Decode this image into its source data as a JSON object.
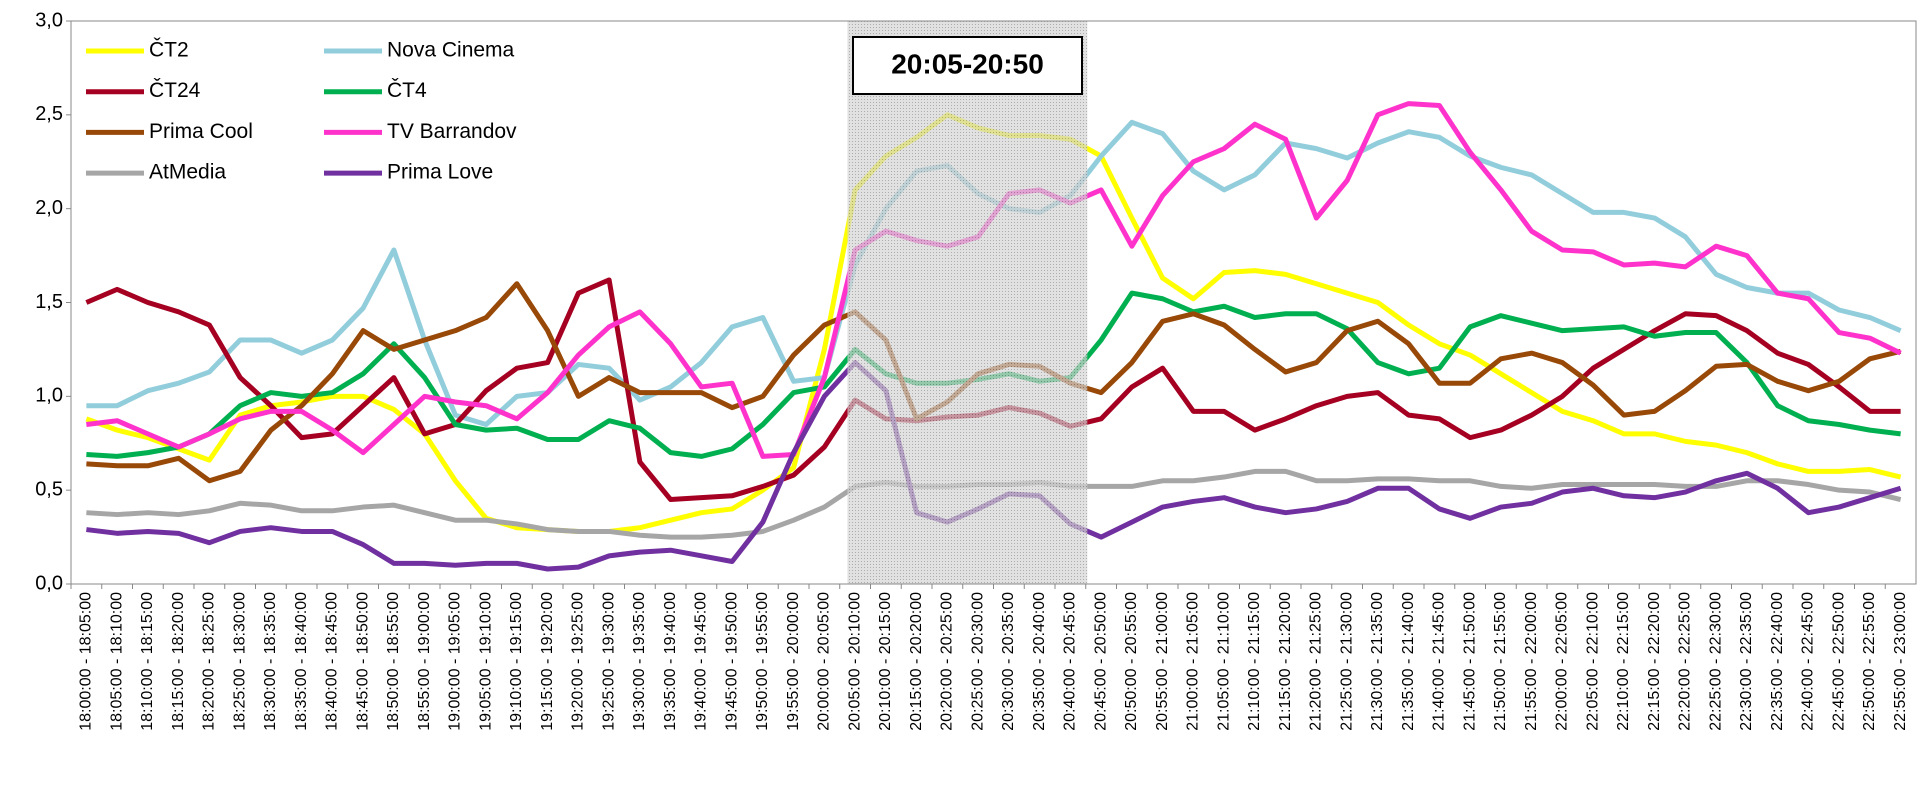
{
  "chart_data": {
    "type": "line",
    "categories": [
      "18:00:00 - 18:05:00",
      "18:05:00 - 18:10:00",
      "18:10:00 - 18:15:00",
      "18:15:00 - 18:20:00",
      "18:20:00 - 18:25:00",
      "18:25:00 - 18:30:00",
      "18:30:00 - 18:35:00",
      "18:35:00 - 18:40:00",
      "18:40:00 - 18:45:00",
      "18:45:00 - 18:50:00",
      "18:50:00 - 18:55:00",
      "18:55:00 - 19:00:00",
      "19:00:00 - 19:05:00",
      "19:05:00 - 19:10:00",
      "19:10:00 - 19:15:00",
      "19:15:00 - 19:20:00",
      "19:20:00 - 19:25:00",
      "19:25:00 - 19:30:00",
      "19:30:00 - 19:35:00",
      "19:35:00 - 19:40:00",
      "19:40:00 - 19:45:00",
      "19:45:00 - 19:50:00",
      "19:50:00 - 19:55:00",
      "19:55:00 - 20:00:00",
      "20:00:00 - 20:05:00",
      "20:05:00 - 20:10:00",
      "20:10:00 - 20:15:00",
      "20:15:00 - 20:20:00",
      "20:20:00 - 20:25:00",
      "20:25:00 - 20:30:00",
      "20:30:00 - 20:35:00",
      "20:35:00 - 20:40:00",
      "20:40:00 - 20:45:00",
      "20:45:00 - 20:50:00",
      "20:50:00 - 20:55:00",
      "20:55:00 - 21:00:00",
      "21:00:00 - 21:05:00",
      "21:05:00 - 21:10:00",
      "21:10:00 - 21:15:00",
      "21:15:00 - 21:20:00",
      "21:20:00 - 21:25:00",
      "21:25:00 - 21:30:00",
      "21:30:00 - 21:35:00",
      "21:35:00 - 21:40:00",
      "21:40:00 - 21:45:00",
      "21:45:00 - 21:50:00",
      "21:50:00 - 21:55:00",
      "21:55:00 - 22:00:00",
      "22:00:00 - 22:05:00",
      "22:05:00 - 22:10:00",
      "22:10:00 - 22:15:00",
      "22:15:00 - 22:20:00",
      "22:20:00 - 22:25:00",
      "22:25:00 - 22:30:00",
      "22:30:00 - 22:35:00",
      "22:35:00 - 22:40:00",
      "22:40:00 - 22:45:00",
      "22:45:00 - 22:50:00",
      "22:50:00 - 22:55:00",
      "22:55:00 - 23:00:00"
    ],
    "series": [
      {
        "name": "ČT2",
        "color": "#ffff00",
        "values": [
          0.88,
          0.82,
          0.78,
          0.72,
          0.66,
          0.9,
          0.95,
          0.97,
          1.0,
          1.0,
          0.93,
          0.8,
          0.55,
          0.35,
          0.3,
          0.29,
          0.28,
          0.28,
          0.3,
          0.34,
          0.38,
          0.4,
          0.5,
          0.62,
          1.25,
          2.1,
          2.28,
          2.38,
          2.5,
          2.43,
          2.39,
          2.39,
          2.37,
          2.28,
          1.95,
          1.63,
          1.52,
          1.66,
          1.67,
          1.65,
          1.6,
          1.55,
          1.5,
          1.38,
          1.28,
          1.22,
          1.12,
          1.02,
          0.92,
          0.87,
          0.8,
          0.8,
          0.76,
          0.74,
          0.7,
          0.64,
          0.6,
          0.6,
          0.61,
          0.57
        ]
      },
      {
        "name": "Nova Cinema",
        "color": "#92cddc",
        "values": [
          0.95,
          0.95,
          1.03,
          1.07,
          1.13,
          1.3,
          1.3,
          1.23,
          1.3,
          1.47,
          1.78,
          1.3,
          0.9,
          0.85,
          1.0,
          1.02,
          1.17,
          1.15,
          0.98,
          1.05,
          1.18,
          1.37,
          1.42,
          1.08,
          1.1,
          1.7,
          2.0,
          2.2,
          2.23,
          2.08,
          2.0,
          1.98,
          2.07,
          2.28,
          2.46,
          2.4,
          2.2,
          2.1,
          2.18,
          2.35,
          2.32,
          2.27,
          2.35,
          2.41,
          2.38,
          2.28,
          2.22,
          2.18,
          2.08,
          1.98,
          1.98,
          1.95,
          1.85,
          1.65,
          1.58,
          1.55,
          1.55,
          1.46,
          1.42,
          1.35
        ]
      },
      {
        "name": "ČT24",
        "color": "#a50021",
        "values": [
          1.5,
          1.57,
          1.5,
          1.45,
          1.38,
          1.1,
          0.95,
          0.78,
          0.8,
          0.95,
          1.1,
          0.8,
          0.85,
          1.03,
          1.15,
          1.18,
          1.55,
          1.62,
          0.65,
          0.45,
          0.46,
          0.47,
          0.52,
          0.58,
          0.73,
          0.98,
          0.88,
          0.87,
          0.89,
          0.9,
          0.94,
          0.91,
          0.84,
          0.88,
          1.05,
          1.15,
          0.92,
          0.92,
          0.82,
          0.88,
          0.95,
          1.0,
          1.02,
          0.9,
          0.88,
          0.78,
          0.82,
          0.9,
          1.0,
          1.15,
          1.25,
          1.35,
          1.44,
          1.43,
          1.35,
          1.23,
          1.17,
          1.05,
          0.92,
          0.92
        ]
      },
      {
        "name": "ČT4",
        "color": "#00b050",
        "values": [
          0.69,
          0.68,
          0.7,
          0.73,
          0.8,
          0.95,
          1.02,
          1.0,
          1.02,
          1.12,
          1.28,
          1.1,
          0.85,
          0.82,
          0.83,
          0.77,
          0.77,
          0.87,
          0.83,
          0.7,
          0.68,
          0.72,
          0.85,
          1.02,
          1.05,
          1.25,
          1.12,
          1.07,
          1.07,
          1.09,
          1.12,
          1.08,
          1.1,
          1.3,
          1.55,
          1.52,
          1.45,
          1.48,
          1.42,
          1.44,
          1.44,
          1.36,
          1.18,
          1.12,
          1.15,
          1.37,
          1.43,
          1.39,
          1.35,
          1.36,
          1.37,
          1.32,
          1.34,
          1.34,
          1.18,
          0.95,
          0.87,
          0.85,
          0.82,
          0.8
        ]
      },
      {
        "name": "Prima Cool",
        "color": "#984807",
        "values": [
          0.64,
          0.63,
          0.63,
          0.67,
          0.55,
          0.6,
          0.82,
          0.95,
          1.12,
          1.35,
          1.25,
          1.3,
          1.35,
          1.42,
          1.6,
          1.35,
          1.0,
          1.1,
          1.02,
          1.02,
          1.02,
          0.94,
          1.0,
          1.22,
          1.38,
          1.45,
          1.3,
          0.88,
          0.97,
          1.12,
          1.17,
          1.16,
          1.07,
          1.02,
          1.18,
          1.4,
          1.44,
          1.38,
          1.25,
          1.13,
          1.18,
          1.35,
          1.4,
          1.28,
          1.07,
          1.07,
          1.2,
          1.23,
          1.18,
          1.06,
          0.9,
          0.92,
          1.03,
          1.16,
          1.17,
          1.08,
          1.03,
          1.08,
          1.2,
          1.24
        ]
      },
      {
        "name": "TV Barrandov",
        "color": "#ff33cc",
        "values": [
          0.85,
          0.87,
          0.8,
          0.73,
          0.8,
          0.88,
          0.92,
          0.92,
          0.82,
          0.7,
          0.85,
          1.0,
          0.97,
          0.95,
          0.88,
          1.02,
          1.22,
          1.37,
          1.45,
          1.28,
          1.05,
          1.07,
          0.68,
          0.69,
          1.1,
          1.78,
          1.88,
          1.83,
          1.8,
          1.85,
          2.08,
          2.1,
          2.03,
          2.1,
          1.8,
          2.07,
          2.25,
          2.32,
          2.45,
          2.37,
          1.95,
          2.15,
          2.5,
          2.56,
          2.55,
          2.3,
          2.1,
          1.88,
          1.78,
          1.77,
          1.7,
          1.71,
          1.69,
          1.8,
          1.75,
          1.55,
          1.52,
          1.34,
          1.31,
          1.23
        ]
      },
      {
        "name": "AtMedia",
        "color": "#a6a6a6",
        "values": [
          0.38,
          0.37,
          0.38,
          0.37,
          0.39,
          0.43,
          0.42,
          0.39,
          0.39,
          0.41,
          0.42,
          0.38,
          0.34,
          0.34,
          0.32,
          0.29,
          0.28,
          0.28,
          0.26,
          0.25,
          0.25,
          0.26,
          0.28,
          0.34,
          0.41,
          0.52,
          0.54,
          0.52,
          0.52,
          0.53,
          0.53,
          0.54,
          0.52,
          0.52,
          0.52,
          0.55,
          0.55,
          0.57,
          0.6,
          0.6,
          0.55,
          0.55,
          0.56,
          0.56,
          0.55,
          0.55,
          0.52,
          0.51,
          0.53,
          0.53,
          0.53,
          0.53,
          0.52,
          0.52,
          0.55,
          0.55,
          0.53,
          0.5,
          0.49,
          0.45
        ]
      },
      {
        "name": "Prima Love",
        "color": "#7030a0",
        "values": [
          0.29,
          0.27,
          0.28,
          0.27,
          0.22,
          0.28,
          0.3,
          0.28,
          0.28,
          0.21,
          0.11,
          0.11,
          0.1,
          0.11,
          0.11,
          0.08,
          0.09,
          0.15,
          0.17,
          0.18,
          0.15,
          0.12,
          0.33,
          0.7,
          1.0,
          1.18,
          1.03,
          0.38,
          0.33,
          0.4,
          0.48,
          0.47,
          0.32,
          0.25,
          0.33,
          0.41,
          0.44,
          0.46,
          0.41,
          0.38,
          0.4,
          0.44,
          0.51,
          0.51,
          0.4,
          0.35,
          0.41,
          0.43,
          0.49,
          0.51,
          0.47,
          0.46,
          0.49,
          0.55,
          0.59,
          0.51,
          0.38,
          0.41,
          0.46,
          0.51
        ]
      }
    ],
    "ylim": [
      0,
      3
    ],
    "yticks": [
      {
        "value": 0,
        "label": "0,0"
      },
      {
        "value": 0.5,
        "label": "0,5"
      },
      {
        "value": 1,
        "label": "1,0"
      },
      {
        "value": 1.5,
        "label": "1,5"
      },
      {
        "value": 2,
        "label": "2,0"
      },
      {
        "value": 2.5,
        "label": "2,5"
      },
      {
        "value": 3,
        "label": "3,0"
      }
    ],
    "grid": false,
    "legend": "top-left",
    "annotation": "20:05-20:50"
  }
}
